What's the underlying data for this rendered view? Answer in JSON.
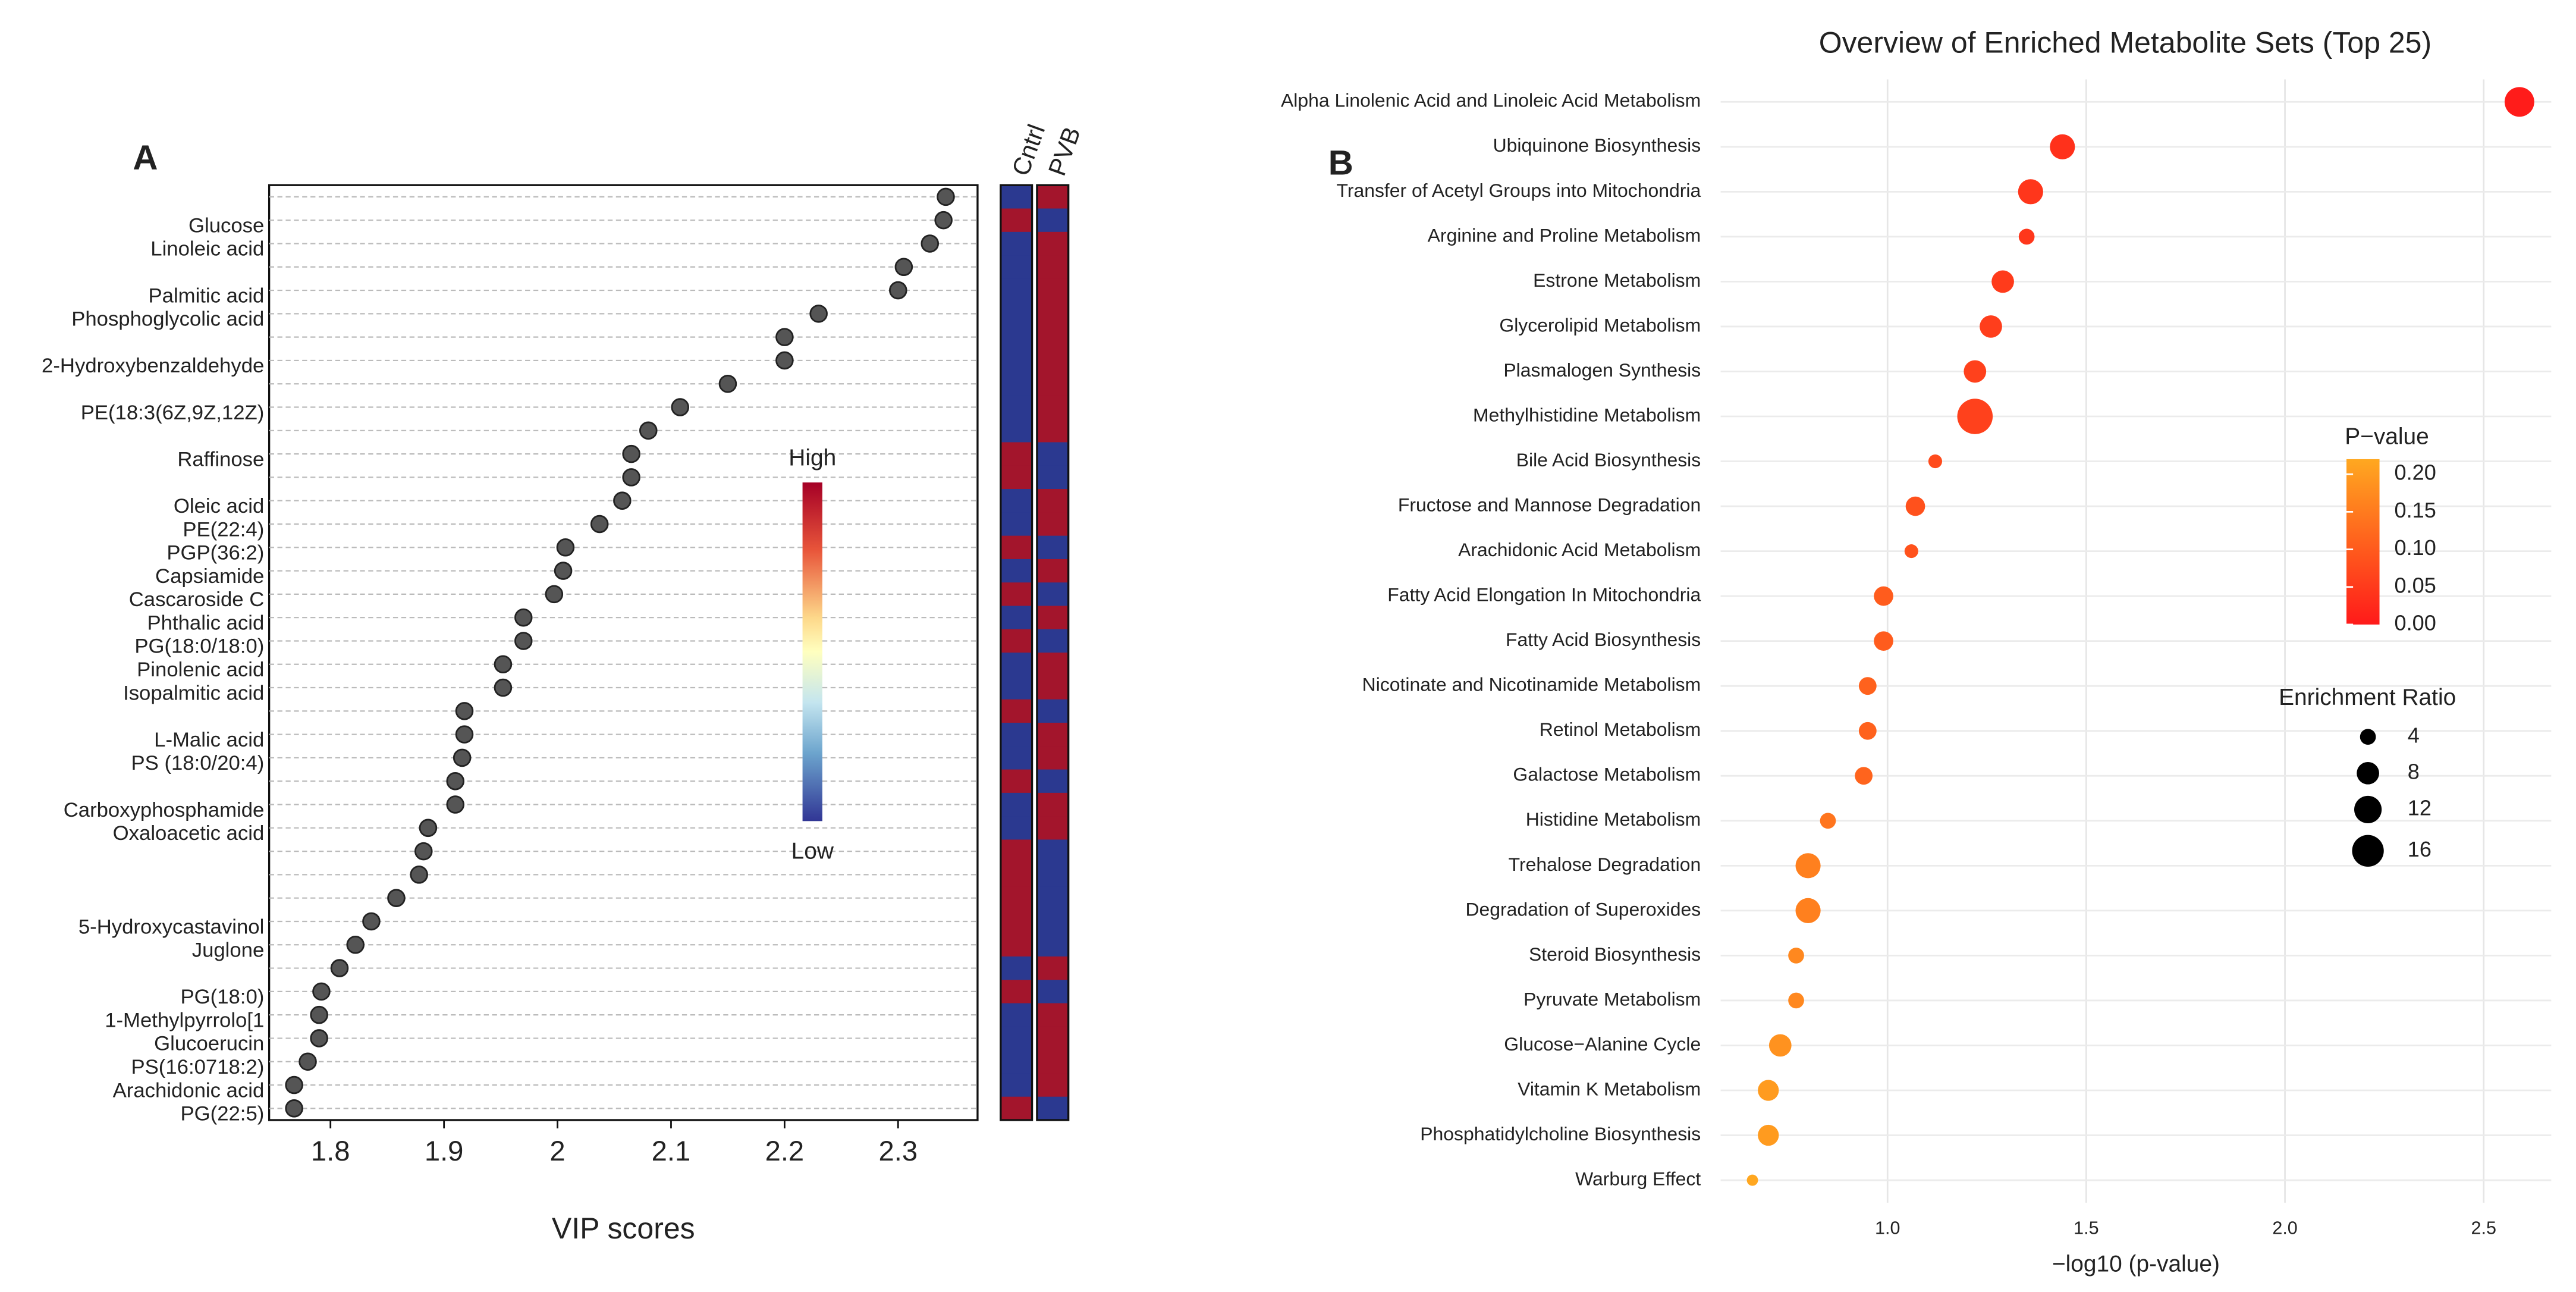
{
  "chart_data": [
    {
      "type": "dot",
      "panel_label": "A",
      "categories": [
        null,
        "Glucose",
        "Linoleic acid",
        null,
        "Palmitic acid",
        "Phosphoglycolic acid",
        null,
        "2-Hydroxybenzaldehyde",
        null,
        "PE(18:3(6Z,9Z,12Z)",
        null,
        "Raffinose",
        null,
        "Oleic acid",
        "PE(22:4)",
        "PGP(36:2)",
        "Capsiamide",
        "Cascaroside C",
        "Phthalic acid",
        "PG(18:0/18:0)",
        "Pinolenic acid",
        "Isopalmitic acid",
        null,
        "L-Malic acid",
        "PS (18:0/20:4)",
        null,
        "Carboxyphosphamide",
        "Oxaloacetic acid",
        null,
        null,
        null,
        "5-Hydroxycastavinol",
        "Juglone",
        null,
        "PG(18:0)",
        "1-Methylpyrrolo[1",
        "Glucoerucin",
        "PS(16:0718:2)",
        "Arachidonic  acid",
        "PG(22:5)"
      ],
      "values": [
        2.342,
        2.34,
        2.328,
        2.305,
        2.3,
        2.23,
        2.2,
        2.2,
        2.15,
        2.108,
        2.08,
        2.065,
        2.065,
        2.057,
        2.037,
        2.007,
        2.005,
        1.997,
        1.97,
        1.97,
        1.952,
        1.952,
        1.918,
        1.918,
        1.916,
        1.91,
        1.91,
        1.886,
        1.882,
        1.878,
        1.858,
        1.836,
        1.822,
        1.808,
        1.792,
        1.79,
        1.79,
        1.78,
        1.768,
        1.768
      ],
      "color": "#555555",
      "xlim": [
        1.746,
        2.37
      ],
      "xticks": [
        1.8,
        1.9,
        2.0,
        2.1,
        2.2,
        2.3
      ],
      "xlabel": "VIP scores",
      "heatmap": {
        "columns": [
          "Cntrl",
          "PVB"
        ],
        "colors": [
          "#2b3990",
          "#a3152c"
        ],
        "values": [
          [
            0,
            1
          ],
          [
            1,
            0
          ],
          [
            0,
            1
          ],
          [
            0,
            1
          ],
          [
            0,
            1
          ],
          [
            0,
            1
          ],
          [
            0,
            1
          ],
          [
            0,
            1
          ],
          [
            0,
            1
          ],
          [
            0,
            1
          ],
          [
            0,
            1
          ],
          [
            1,
            0
          ],
          [
            1,
            0
          ],
          [
            0,
            1
          ],
          [
            0,
            1
          ],
          [
            1,
            0
          ],
          [
            0,
            1
          ],
          [
            1,
            0
          ],
          [
            0,
            1
          ],
          [
            1,
            0
          ],
          [
            0,
            1
          ],
          [
            0,
            1
          ],
          [
            1,
            0
          ],
          [
            0,
            1
          ],
          [
            0,
            1
          ],
          [
            1,
            0
          ],
          [
            0,
            1
          ],
          [
            0,
            1
          ],
          [
            1,
            0
          ],
          [
            1,
            0
          ],
          [
            1,
            0
          ],
          [
            1,
            0
          ],
          [
            1,
            0
          ],
          [
            0,
            1
          ],
          [
            1,
            0
          ],
          [
            0,
            1
          ],
          [
            0,
            1
          ],
          [
            0,
            1
          ],
          [
            0,
            1
          ],
          [
            1,
            0
          ]
        ]
      },
      "colorbar": {
        "high": "High",
        "low": "Low"
      }
    },
    {
      "type": "bubble",
      "panel_label": "B",
      "title": "Overview of Enriched Metabolite Sets (Top 25)",
      "categories": [
        "Alpha Linolenic Acid and Linoleic Acid Metabolism",
        "Ubiquinone Biosynthesis",
        "Transfer of Acetyl Groups into Mitochondria",
        "Arginine and Proline Metabolism",
        "Estrone Metabolism",
        "Glycerolipid Metabolism",
        "Plasmalogen Synthesis",
        "Methylhistidine Metabolism",
        "Bile Acid Biosynthesis",
        "Fructose and Mannose Degradation",
        "Arachidonic Acid Metabolism",
        "Fatty Acid Elongation In Mitochondria",
        "Fatty Acid Biosynthesis",
        "Nicotinate and Nicotinamide Metabolism",
        "Retinol Metabolism",
        "Galactose Metabolism",
        "Histidine Metabolism",
        "Trehalose Degradation",
        "Degradation of Superoxides",
        "Steroid Biosynthesis",
        "Pyruvate Metabolism",
        "Glucose−Alanine Cycle",
        "Vitamin K Metabolism",
        "Phosphatidylcholine Biosynthesis",
        "Warburg Effect"
      ],
      "values": [
        2.59,
        1.44,
        1.36,
        1.35,
        1.29,
        1.26,
        1.22,
        1.22,
        1.12,
        1.07,
        1.06,
        0.99,
        0.99,
        0.95,
        0.95,
        0.94,
        0.85,
        0.8,
        0.8,
        0.77,
        0.77,
        0.73,
        0.7,
        0.7,
        0.66
      ],
      "sizes": [
        14,
        10,
        10,
        4,
        8,
        8,
        8,
        20,
        3,
        6,
        3,
        6,
        6,
        5,
        5,
        5,
        4,
        10,
        10,
        4,
        4,
        8,
        7,
        7,
        2
      ],
      "pvalues": [
        0.003,
        0.036,
        0.044,
        0.045,
        0.051,
        0.055,
        0.06,
        0.06,
        0.076,
        0.085,
        0.087,
        0.102,
        0.102,
        0.112,
        0.112,
        0.115,
        0.141,
        0.158,
        0.158,
        0.17,
        0.17,
        0.186,
        0.2,
        0.2,
        0.219
      ],
      "xlim": [
        0.58,
        2.67
      ],
      "xticks": [
        {
          "value": 1.0,
          "label": "1.0"
        },
        {
          "value": 1.5,
          "label": "1.5"
        },
        {
          "value": 2.0,
          "label": "2.0"
        },
        {
          "value": 2.5,
          "label": "2.5"
        }
      ],
      "xlabel": "−log10 (p-value)",
      "grid": true,
      "color_legend": {
        "title": "P−value",
        "colors": [
          "#ff1a1a",
          "#ffa820"
        ],
        "clim": [
          0,
          0.22
        ],
        "ticks": [
          {
            "value": 0.2,
            "label": "0.20"
          },
          {
            "value": 0.15,
            "label": "0.15"
          },
          {
            "value": 0.1,
            "label": "0.10"
          },
          {
            "value": 0.05,
            "label": "0.05"
          },
          {
            "value": 0,
            "label": "0.00"
          }
        ]
      },
      "size_legend": {
        "title": "Enrichment Ratio",
        "values": [
          4,
          8,
          12,
          16
        ]
      }
    }
  ]
}
